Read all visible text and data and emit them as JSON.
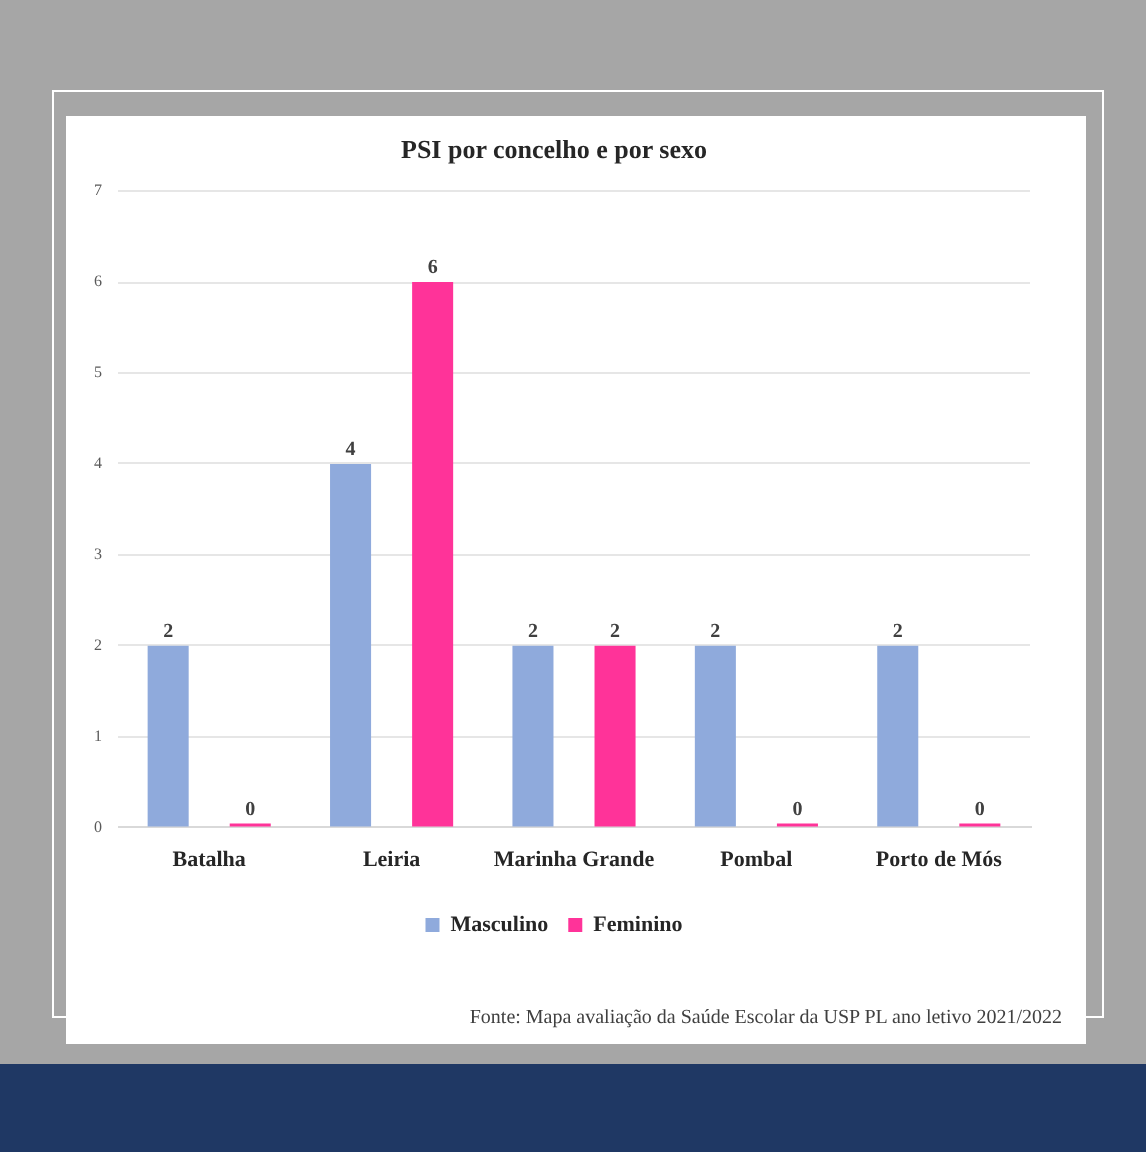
{
  "chart_data": {
    "type": "bar",
    "title": "PSI por concelho e por sexo",
    "categories": [
      "Batalha",
      "Leiria",
      "Marinha Grande",
      "Pombal",
      "Porto de Mós"
    ],
    "series": [
      {
        "name": "Masculino",
        "color": "#8faadc",
        "values": [
          2,
          4,
          2,
          2,
          2
        ]
      },
      {
        "name": "Feminino",
        "color": "#ff3399",
        "values": [
          0,
          6,
          2,
          0,
          0
        ]
      }
    ],
    "ylim": [
      0,
      7
    ],
    "yticks": [
      0,
      1,
      2,
      3,
      4,
      5,
      6,
      7
    ],
    "grid": "y",
    "legend": "bottom",
    "data_labels": true,
    "annotations": [
      "Fonte: Mapa avaliação da Saúde Escolar da USP PL ano letivo 2021/2022"
    ]
  }
}
